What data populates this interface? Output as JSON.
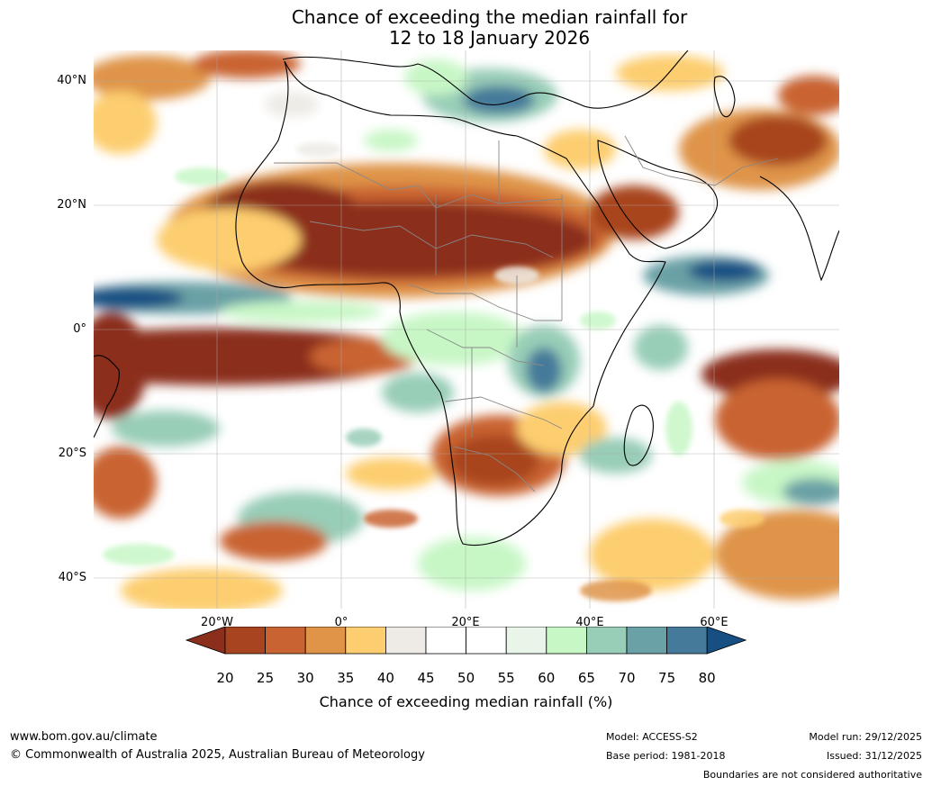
{
  "title_line1": "Chance of exceeding the median rainfall for",
  "title_line2": "12 to 18 January 2026",
  "lat_labels": [
    "40°N",
    "20°N",
    "0°",
    "20°S",
    "40°S"
  ],
  "lon_labels": [
    "20°W",
    "0°",
    "20°E",
    "40°E",
    "60°E"
  ],
  "colorbar": {
    "ticks": [
      "20",
      "25",
      "30",
      "35",
      "40",
      "45",
      "50",
      "55",
      "60",
      "65",
      "70",
      "75",
      "80"
    ],
    "colors": [
      "#8b2e1b",
      "#a8441f",
      "#c96432",
      "#df9448",
      "#fdce70",
      "#eeebe6",
      "#ffffff",
      "#ffffff",
      "#e8f5e8",
      "#c8f7c6",
      "#98cdb7",
      "#6aa1a6",
      "#457a9a",
      "#174f83"
    ],
    "label": "Chance of exceeding median rainfall (%)"
  },
  "footer": {
    "website": "www.bom.gov.au/climate",
    "copyright": "© Commonwealth of Australia 2025, Australian Bureau of Meteorology",
    "model": "Model: ACCESS-S2",
    "base_period": "Base period: 1981-2018",
    "model_run": "Model run: 29/12/2025",
    "issued": "Issued: 31/12/2025",
    "disclaimer": "Boundaries are not considered authoritative"
  }
}
